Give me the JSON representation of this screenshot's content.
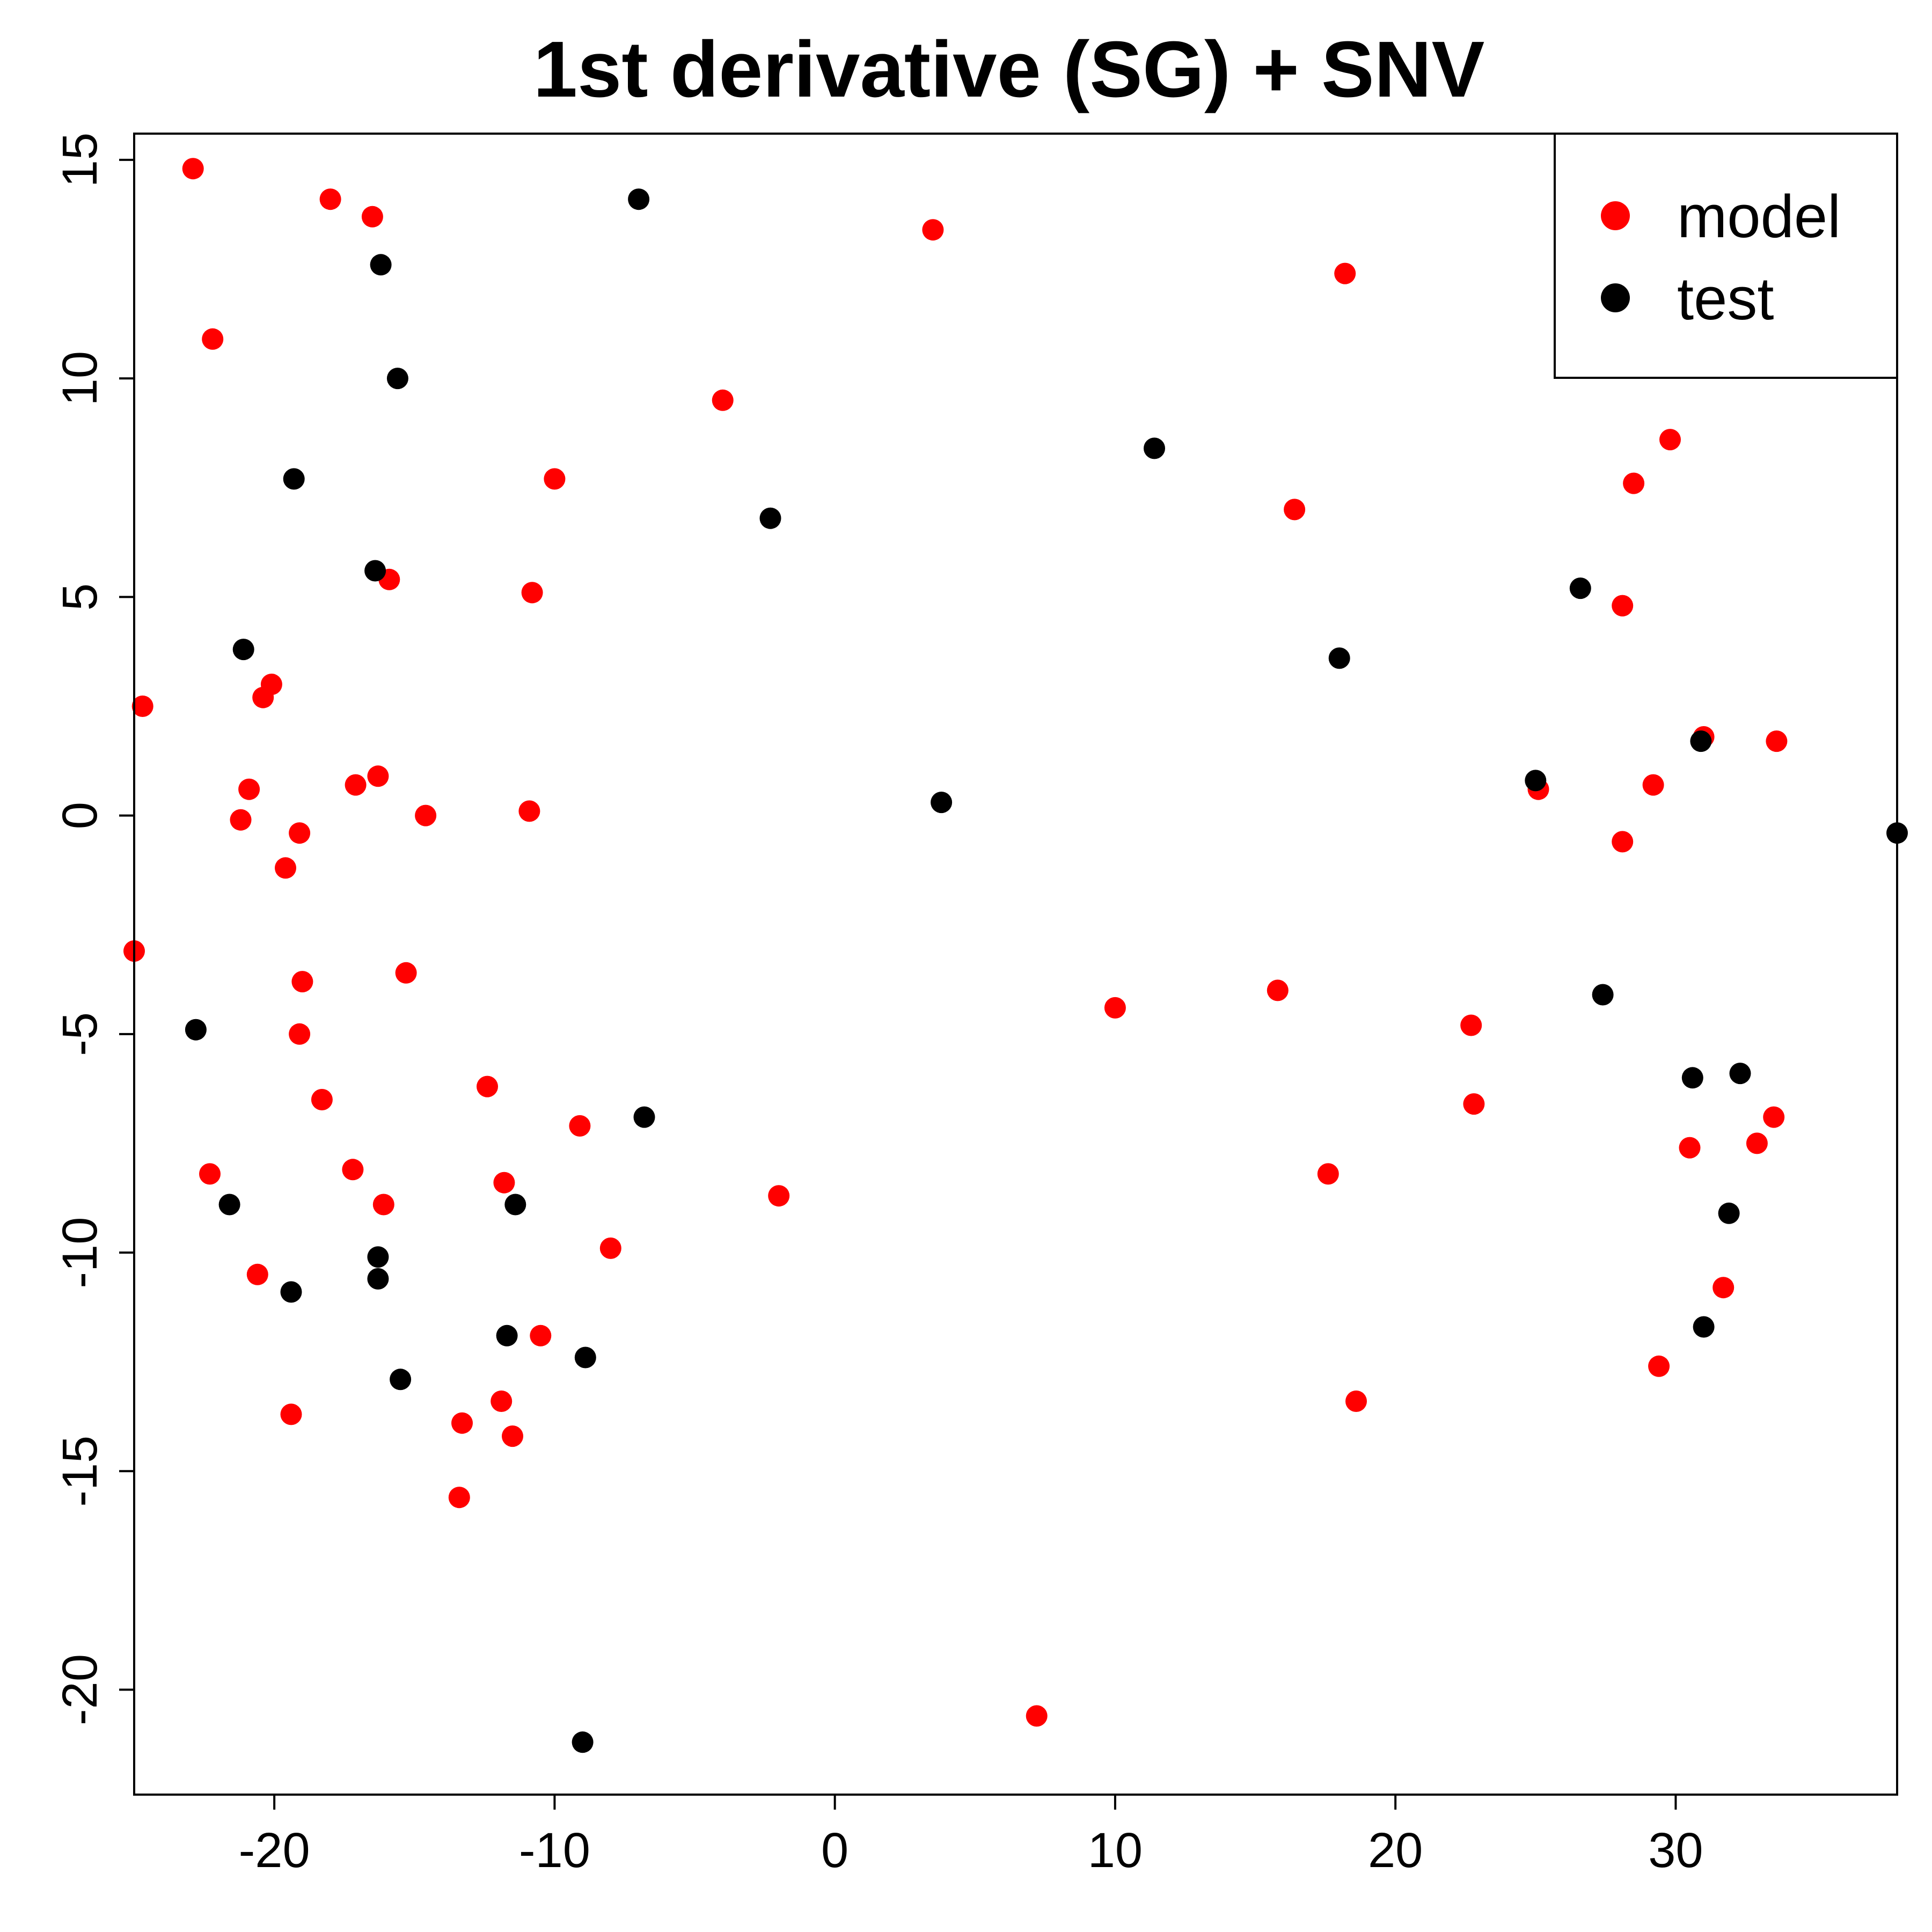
{
  "chart_data": {
    "type": "scatter",
    "title": "1st derivative (SG) + SNV",
    "xlabel": "",
    "ylabel": "",
    "xlim": [
      -25.0,
      37.9
    ],
    "ylim": [
      -22.4,
      15.6
    ],
    "xticks": [
      -20,
      -10,
      0,
      10,
      20,
      30
    ],
    "yticks": [
      -20,
      -15,
      -10,
      -5,
      0,
      5,
      10,
      15
    ],
    "grid": false,
    "legend_position": "top-right",
    "series": [
      {
        "name": "model",
        "color": "#ff0000",
        "points": [
          [
            -22.9,
            14.8
          ],
          [
            -18.0,
            14.1
          ],
          [
            -16.5,
            13.7
          ],
          [
            -22.2,
            10.9
          ],
          [
            -4.0,
            9.5
          ],
          [
            3.5,
            13.4
          ],
          [
            18.2,
            12.4
          ],
          [
            -10.0,
            7.7
          ],
          [
            -15.9,
            5.4
          ],
          [
            -10.8,
            5.1
          ],
          [
            -24.7,
            2.5
          ],
          [
            -20.1,
            3.0
          ],
          [
            -20.4,
            2.7
          ],
          [
            -20.9,
            0.6
          ],
          [
            -21.2,
            -0.1
          ],
          [
            -19.1,
            -0.4
          ],
          [
            -19.6,
            -1.2
          ],
          [
            -17.1,
            0.7
          ],
          [
            -16.3,
            0.9
          ],
          [
            -14.6,
            0.0
          ],
          [
            -10.9,
            0.1
          ],
          [
            -25.0,
            -3.1
          ],
          [
            -19.0,
            -3.8
          ],
          [
            -15.3,
            -3.6
          ],
          [
            -19.1,
            -5.0
          ],
          [
            -18.3,
            -6.5
          ],
          [
            -12.4,
            -6.2
          ],
          [
            -9.1,
            -7.1
          ],
          [
            -22.3,
            -8.2
          ],
          [
            -17.2,
            -8.1
          ],
          [
            -16.1,
            -8.9
          ],
          [
            -11.8,
            -8.4
          ],
          [
            -2.0,
            -8.7
          ],
          [
            -8.0,
            -9.9
          ],
          [
            -20.6,
            -10.5
          ],
          [
            -10.5,
            -11.9
          ],
          [
            -19.4,
            -13.7
          ],
          [
            -13.3,
            -13.9
          ],
          [
            -11.9,
            -13.4
          ],
          [
            -11.5,
            -14.2
          ],
          [
            -13.4,
            -15.6
          ],
          [
            7.2,
            -20.6
          ],
          [
            10.0,
            -4.4
          ],
          [
            15.8,
            -4.0
          ],
          [
            16.4,
            7.0
          ],
          [
            22.7,
            -4.8
          ],
          [
            22.8,
            -6.6
          ],
          [
            17.6,
            -8.2
          ],
          [
            18.6,
            -13.4
          ],
          [
            29.8,
            8.6
          ],
          [
            28.5,
            7.6
          ],
          [
            28.1,
            4.8
          ],
          [
            31.0,
            1.8
          ],
          [
            33.6,
            1.7
          ],
          [
            25.1,
            0.6
          ],
          [
            29.2,
            0.7
          ],
          [
            28.1,
            -0.6
          ],
          [
            30.5,
            -7.6
          ],
          [
            32.9,
            -7.5
          ],
          [
            33.5,
            -6.9
          ],
          [
            31.7,
            -10.8
          ],
          [
            29.4,
            -12.6
          ]
        ]
      },
      {
        "name": "test",
        "color": "#000000",
        "points": [
          [
            -7.0,
            14.1
          ],
          [
            -16.2,
            12.6
          ],
          [
            -15.6,
            10.0
          ],
          [
            -19.3,
            7.7
          ],
          [
            -2.3,
            6.8
          ],
          [
            11.4,
            8.4
          ],
          [
            -16.4,
            5.6
          ],
          [
            -21.1,
            3.8
          ],
          [
            3.8,
            0.3
          ],
          [
            18.0,
            3.6
          ],
          [
            26.6,
            5.2
          ],
          [
            25.0,
            0.8
          ],
          [
            30.9,
            1.7
          ],
          [
            37.9,
            -0.4
          ],
          [
            -22.8,
            -4.9
          ],
          [
            -6.8,
            -6.9
          ],
          [
            27.4,
            -4.1
          ],
          [
            30.6,
            -6.0
          ],
          [
            32.3,
            -5.9
          ],
          [
            -21.6,
            -8.9
          ],
          [
            -11.4,
            -8.9
          ],
          [
            -16.3,
            -10.1
          ],
          [
            -16.3,
            -10.6
          ],
          [
            -19.4,
            -10.9
          ],
          [
            31.9,
            -9.1
          ],
          [
            -11.7,
            -11.9
          ],
          [
            -8.9,
            -12.4
          ],
          [
            31.0,
            -11.7
          ],
          [
            -15.5,
            -12.9
          ],
          [
            -9.0,
            -21.2
          ]
        ]
      }
    ]
  }
}
